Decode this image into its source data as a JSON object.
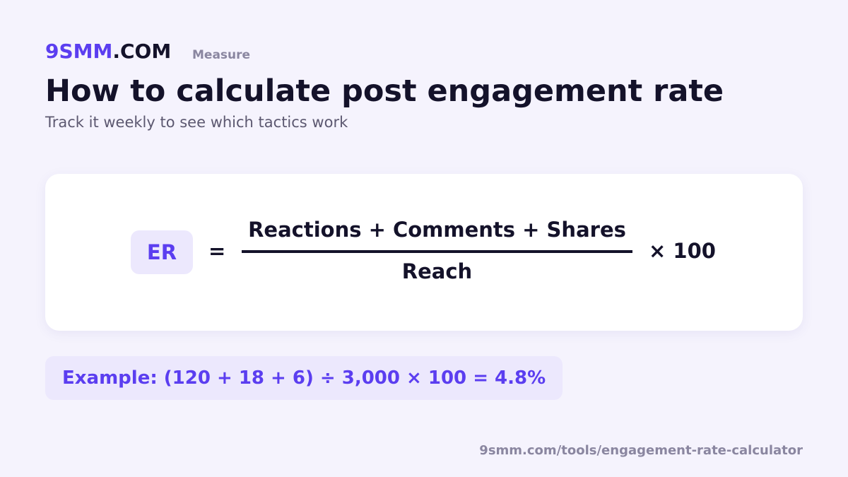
{
  "header": {
    "brand_part1": "9SMM",
    "brand_part2": ".COM",
    "tag": "Measure",
    "title": "How to calculate post engagement rate",
    "subtitle": "Track it weekly to see which tactics work"
  },
  "formula": {
    "lhs": "ER",
    "equals": "=",
    "numerator": "Reactions + Comments + Shares",
    "denominator": "Reach",
    "multiplier": "× 100"
  },
  "example": "Example: (120 + 18 + 6) ÷ 3,000 × 100 = 4.8%",
  "footer": "9smm.com/tools/engagement-rate-calculator"
}
